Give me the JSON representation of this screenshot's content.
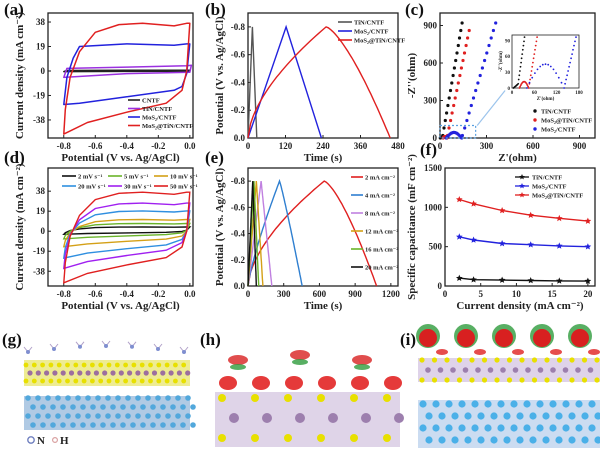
{
  "figure": {
    "panel_labels": [
      "(a)",
      "(b)",
      "(c)",
      "(d)",
      "(e)",
      "(f)",
      "(g)",
      "(h)",
      "(i)"
    ],
    "structure_legend": [
      {
        "symbol": "N",
        "color": "#6f7fbf"
      },
      {
        "symbol": "H",
        "color": "#d9a0a0"
      }
    ]
  },
  "chart_data": [
    {
      "id": "a",
      "type": "line",
      "title": "",
      "xlabel": "Potential (V vs. Ag/AgCl)",
      "ylabel": "Current density (mA cm⁻²)",
      "xlim": [
        -0.9,
        0.02
      ],
      "ylim": [
        -52,
        45
      ],
      "xticks": [
        "-0.8",
        "-0.6",
        "-0.4",
        "-0.2",
        "0.0"
      ],
      "xtick_values": [
        -0.8,
        -0.6,
        -0.4,
        -0.2,
        0.0
      ],
      "yticks": [
        "38",
        "19",
        "0",
        "-19",
        "-38"
      ],
      "ytick_values": [
        38,
        19,
        0,
        -19,
        -38
      ],
      "legend_position": "bottom-right",
      "series": [
        {
          "name": "CNTF",
          "color": "#222222",
          "upper": 0.5,
          "lower": -0.3,
          "loop": [
            [
              -0.8,
              -0.5
            ],
            [
              -0.78,
              0.4
            ],
            [
              -0.4,
              0.5
            ],
            [
              0.0,
              0.6
            ],
            [
              0.0,
              -0.2
            ],
            [
              -0.4,
              -0.3
            ],
            [
              -0.8,
              -0.5
            ]
          ]
        },
        {
          "name": "TiN/CNTF",
          "color": "#9b30e0",
          "loop": [
            [
              -0.8,
              -5
            ],
            [
              -0.78,
              2
            ],
            [
              -0.4,
              3
            ],
            [
              -0.02,
              4
            ],
            [
              0.01,
              4.5
            ],
            [
              0.0,
              -1
            ],
            [
              -0.4,
              -2
            ],
            [
              -0.8,
              -5
            ]
          ]
        },
        {
          "name": "MoS₂/CNTF",
          "color": "#2222dd",
          "loop": [
            [
              -0.8,
              -26
            ],
            [
              -0.78,
              -5
            ],
            [
              -0.74,
              10
            ],
            [
              -0.7,
              19
            ],
            [
              -0.4,
              21
            ],
            [
              -0.1,
              20
            ],
            [
              -0.02,
              21
            ],
            [
              0.0,
              21
            ],
            [
              -0.02,
              -2
            ],
            [
              -0.05,
              -12
            ],
            [
              -0.1,
              -15
            ],
            [
              -0.4,
              -20
            ],
            [
              -0.7,
              -25
            ],
            [
              -0.8,
              -26
            ]
          ]
        },
        {
          "name": "MoS₂@TiN/CNTF",
          "color": "#e02020",
          "loop": [
            [
              -0.8,
              -49
            ],
            [
              -0.79,
              -30
            ],
            [
              -0.76,
              -5
            ],
            [
              -0.7,
              15
            ],
            [
              -0.6,
              30
            ],
            [
              -0.45,
              36
            ],
            [
              -0.3,
              37
            ],
            [
              -0.1,
              35
            ],
            [
              -0.02,
              37
            ],
            [
              0.0,
              37
            ],
            [
              -0.02,
              0
            ],
            [
              -0.05,
              -15
            ],
            [
              -0.15,
              -25
            ],
            [
              -0.4,
              -32
            ],
            [
              -0.65,
              -40
            ],
            [
              -0.8,
              -49
            ]
          ]
        }
      ]
    },
    {
      "id": "b",
      "type": "line",
      "title": "",
      "xlabel": "Time (s)",
      "ylabel": "Potential (V vs. Ag/AgCl)",
      "xlim": [
        0,
        480
      ],
      "ylim": [
        0,
        -0.9
      ],
      "xticks": [
        "0",
        "120",
        "240",
        "360",
        "480"
      ],
      "xtick_values": [
        0,
        120,
        240,
        360,
        480
      ],
      "yticks": [
        "0.0",
        "-0.2",
        "-0.4",
        "-0.6",
        "-0.8"
      ],
      "ytick_values": [
        0,
        -0.2,
        -0.4,
        -0.6,
        -0.8
      ],
      "legend_position": "top-right",
      "series": [
        {
          "name": "TiN/CNTF",
          "color": "#555555",
          "points": [
            [
              0,
              0
            ],
            [
              14,
              -0.8
            ],
            [
              28,
              0
            ]
          ],
          "curve": "linear"
        },
        {
          "name": "MoS₂/CNTF",
          "color": "#2222dd",
          "points": [
            [
              0,
              0
            ],
            [
              122,
              -0.8
            ],
            [
              235,
              0
            ]
          ],
          "curve": "linear"
        },
        {
          "name": "MoS₂@TiN/CNTF",
          "color": "#e02020",
          "charge_end": 250,
          "discharge_end": 455,
          "peak": -0.8,
          "curve": "sqrt"
        }
      ]
    },
    {
      "id": "c",
      "type": "scatter",
      "title": "",
      "xlabel": "Z'(ohm)",
      "ylabel": "-Z''(ohm)",
      "xlim": [
        0,
        1000
      ],
      "ylim": [
        0,
        1000
      ],
      "xticks": [
        "0",
        "300",
        "600",
        "900"
      ],
      "xtick_values": [
        0,
        300,
        600,
        900
      ],
      "yticks": [
        "0",
        "300",
        "600",
        "900"
      ],
      "ytick_values": [
        0,
        300,
        600,
        900
      ],
      "legend_position": "bottom-right",
      "series": [
        {
          "name": "TiN/CNTF",
          "color": "#111111",
          "start": 10,
          "knee": 15,
          "slope": 7.2,
          "top": 930
        },
        {
          "name": "MoS₂@TiN/CNTF",
          "color": "#e02020",
          "start": 30,
          "knee": 45,
          "slope": 6.0,
          "top": 890,
          "arc": [
            20,
            45,
            12
          ]
        },
        {
          "name": "MoS₂/CNTF",
          "color": "#2222dd",
          "start": 40,
          "knee": 140,
          "slope": 4.2,
          "top": 930,
          "arc": [
            40,
            140,
            45
          ]
        }
      ],
      "inset": {
        "xlabel": "Z'(ohm)",
        "ylabel": "-Z''(ohm)",
        "xlim": [
          0,
          180
        ],
        "ylim": [
          0,
          100
        ],
        "xticks": [
          "0",
          "60",
          "120",
          "180"
        ],
        "xtick_values": [
          0,
          60,
          120,
          180
        ],
        "yticks": [
          "0",
          "30",
          "60",
          "90"
        ],
        "ytick_values": [
          0,
          30,
          60,
          90
        ],
        "series_ref": "same"
      }
    },
    {
      "id": "d",
      "type": "line",
      "title": "",
      "xlabel": "Potential (V vs. Ag/AgCl)",
      "ylabel": "Current density (mA cm⁻²)",
      "xlim": [
        -0.9,
        0.02
      ],
      "ylim": [
        -52,
        60
      ],
      "xticks": [
        "-0.8",
        "-0.6",
        "-0.4",
        "-0.2",
        "0.0"
      ],
      "xtick_values": [
        -0.8,
        -0.6,
        -0.4,
        -0.2,
        0.0
      ],
      "yticks": [
        "38",
        "19",
        "0",
        "-19",
        "-38"
      ],
      "ytick_values": [
        38,
        19,
        0,
        -19,
        -38
      ],
      "legend_position": "top",
      "series": [
        {
          "name": "2 mV s⁻¹",
          "color": "#111111",
          "scale": 0.08
        },
        {
          "name": "5 mV s⁻¹",
          "color": "#6ab42a",
          "scale": 0.17
        },
        {
          "name": "10 mV s⁻¹",
          "color": "#d4a017",
          "scale": 0.3
        },
        {
          "name": "20 mV s⁻¹",
          "color": "#2f8fe0",
          "scale": 0.52
        },
        {
          "name": "30 mV s⁻¹",
          "color": "#a020f0",
          "scale": 0.72
        },
        {
          "name": "50 mV s⁻¹",
          "color": "#e02020",
          "scale": 1.0
        }
      ]
    },
    {
      "id": "e",
      "type": "line",
      "title": "",
      "xlabel": "Time (s)",
      "ylabel": "Potential (V vs. Ag/AgCl)",
      "xlim": [
        0,
        1260
      ],
      "ylim": [
        0,
        -0.9
      ],
      "xticks": [
        "0",
        "300",
        "600",
        "900",
        "1200"
      ],
      "xtick_values": [
        0,
        300,
        600,
        900,
        1200
      ],
      "yticks": [
        "0.0",
        "-0.2",
        "-0.4",
        "-0.6",
        "-0.8"
      ],
      "ytick_values": [
        0,
        -0.2,
        -0.4,
        -0.6,
        -0.8
      ],
      "legend_position": "right",
      "series": [
        {
          "name": "2 mA cm⁻²",
          "color": "#e02020",
          "charge_end": 640,
          "discharge_end": 1080,
          "curve": "sqrt"
        },
        {
          "name": "4 mA cm⁻²",
          "color": "#2f7fd0",
          "charge_end": 265,
          "discharge_end": 455,
          "curve": "slight"
        },
        {
          "name": "8 mA cm⁻²",
          "color": "#c080e0",
          "charge_end": 110,
          "discharge_end": 200,
          "curve": "linear"
        },
        {
          "name": "12 mA cm⁻²",
          "color": "#d4a017",
          "charge_end": 70,
          "discharge_end": 125,
          "curve": "linear"
        },
        {
          "name": "16 mA cm⁻²",
          "color": "#6ab42a",
          "charge_end": 50,
          "discharge_end": 90,
          "curve": "linear"
        },
        {
          "name": "20 mA cm⁻²",
          "color": "#111111",
          "charge_end": 40,
          "discharge_end": 70,
          "curve": "linear"
        }
      ]
    },
    {
      "id": "f",
      "type": "line",
      "title": "",
      "xlabel": "Current density (mA cm⁻²)",
      "ylabel": "Specific capacitance (mF cm⁻²)",
      "xlim": [
        0,
        21
      ],
      "ylim": [
        0,
        1500
      ],
      "xticks": [
        "0",
        "5",
        "10",
        "15",
        "20"
      ],
      "xtick_values": [
        0,
        5,
        10,
        15,
        20
      ],
      "yticks": [
        "0",
        "500",
        "1000",
        "1500"
      ],
      "ytick_values": [
        0,
        500,
        1000,
        1500
      ],
      "legend_position": "top-right",
      "x": [
        2,
        4,
        8,
        12,
        16,
        20
      ],
      "series": [
        {
          "name": "TiN/CNTF",
          "color": "#111111",
          "values": [
            100,
            80,
            75,
            70,
            65,
            62
          ]
        },
        {
          "name": "MoS₂/CNTF",
          "color": "#2222dd",
          "values": [
            625,
            585,
            540,
            525,
            510,
            500
          ]
        },
        {
          "name": "MoS₂@TiN/CNTF",
          "color": "#e02020",
          "values": [
            1100,
            1045,
            960,
            900,
            860,
            825
          ]
        }
      ]
    }
  ]
}
